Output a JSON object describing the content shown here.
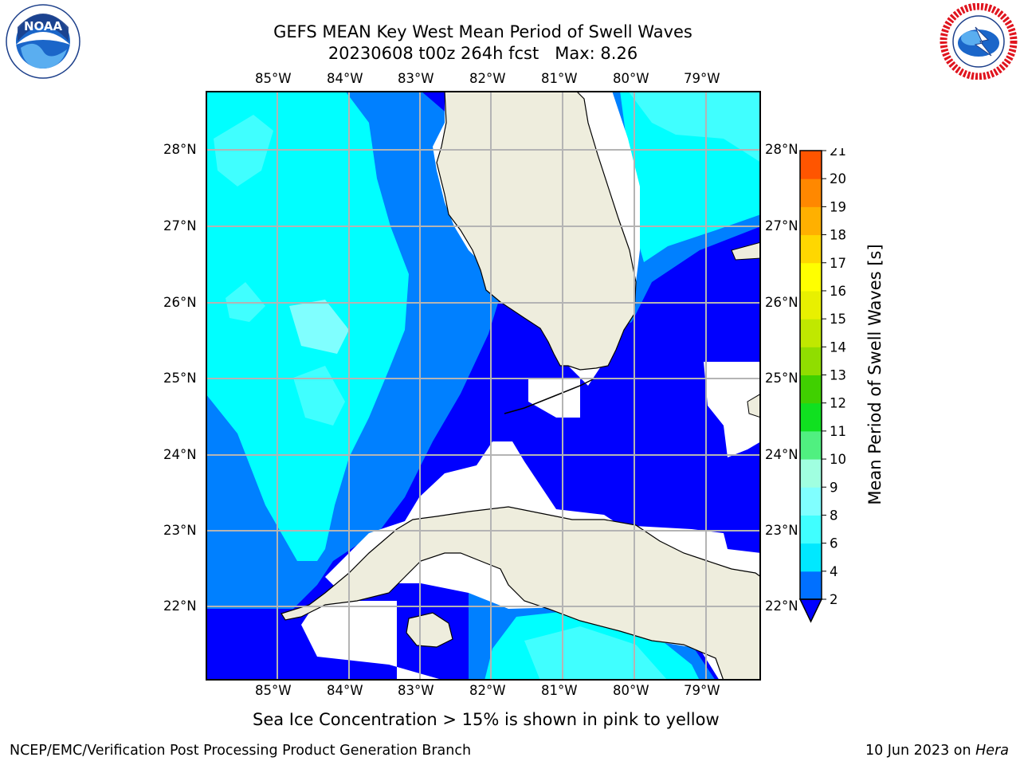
{
  "title": {
    "line1": "GEFS MEAN Key West Mean Period of Swell Waves",
    "line2_run": "20230608 t00z 264h fcst",
    "line2_max": "Max: 8.26"
  },
  "logos": {
    "noaa": {
      "text": "NOAA",
      "ring_text": "NATIONAL OCEANIC AND ATMOSPHERIC ADMINISTRATION · U.S. DEPARTMENT OF COMMERCE"
    },
    "nws": {
      "ring_text": "NATIONAL WEATHER SERVICE"
    }
  },
  "map": {
    "lon_ticks": [
      "85°W",
      "84°W",
      "83°W",
      "82°W",
      "81°W",
      "80°W",
      "79°W"
    ],
    "lat_ticks": [
      "28°N",
      "27°N",
      "26°N",
      "25°N",
      "24°N",
      "23°N",
      "22°N"
    ],
    "lon_range": [
      -86.0,
      -78.3
    ],
    "lat_range": [
      21.0,
      28.8
    ],
    "ocean_regions": [
      {
        "name": "deep-blue",
        "color": "#0000ff"
      },
      {
        "name": "mid-blue",
        "color": "#0080ff"
      },
      {
        "name": "cyan",
        "color": "#00ffff"
      },
      {
        "name": "light-cyan",
        "color": "#40ffff"
      },
      {
        "name": "pale-cyan",
        "color": "#80ffff"
      }
    ],
    "land_color": "#eeeddd",
    "grid_color": "#b4b4b4"
  },
  "colorbar": {
    "label": "Mean Period of Swell Waves [s]",
    "ticks": [
      "2",
      "4",
      "6",
      "8",
      "9",
      "10",
      "11",
      "12",
      "13",
      "14",
      "15",
      "16",
      "17",
      "18",
      "19",
      "20",
      "21"
    ],
    "colors": [
      "#0070ff",
      "#00e8ff",
      "#40ffff",
      "#80ffff",
      "#a0ffe0",
      "#50f080",
      "#10e020",
      "#40d000",
      "#90dd00",
      "#c0e800",
      "#e8f000",
      "#ffff00",
      "#ffd700",
      "#ffb000",
      "#ff8800",
      "#ff5500",
      "#ff2a00",
      "#ff0000"
    ],
    "under_color": "#0000ff"
  },
  "caption": "Sea Ice Concentration > 15% is shown in pink to yellow",
  "footer": {
    "left": "NCEP/EMC/Verification Post Processing Product Generation Branch",
    "right_date": "10 Jun 2023 on ",
    "right_host": "Hera"
  }
}
